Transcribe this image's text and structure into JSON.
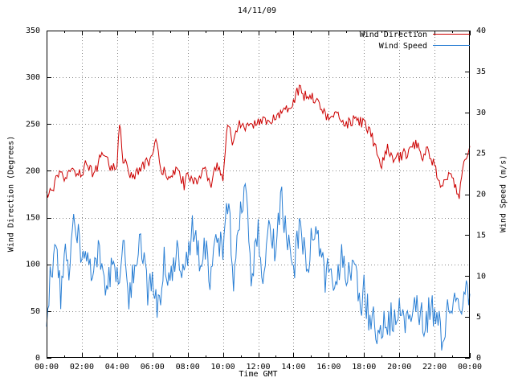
{
  "colors": {
    "background": "#ffffff",
    "axis": "#000000",
    "grid": "#888888",
    "wind_direction": "#cc0000",
    "wind_speed": "#2a7fd4"
  },
  "chart_data": {
    "type": "line",
    "title": "14/11/09",
    "xlabel": "Time GMT",
    "ylabel": "Wind Direction (Degrees)",
    "y2label": "Wind Speed (m/s)",
    "grid": true,
    "legend_position": "top-right-inside",
    "xlim_hours": [
      0,
      24
    ],
    "x_tick_hours": [
      0,
      2,
      4,
      6,
      8,
      10,
      12,
      14,
      16,
      18,
      20,
      22,
      24
    ],
    "x_tick_labels": [
      "00:00",
      "02:00",
      "04:00",
      "06:00",
      "08:00",
      "10:00",
      "12:00",
      "14:00",
      "16:00",
      "18:00",
      "20:00",
      "22:00",
      "00:00"
    ],
    "ylim": [
      0,
      350
    ],
    "y_ticks": [
      0,
      50,
      100,
      150,
      200,
      250,
      300,
      350
    ],
    "y2lim": [
      0,
      40
    ],
    "y2_ticks": [
      0,
      5,
      10,
      15,
      20,
      25,
      30,
      35,
      40
    ],
    "series": [
      {
        "name": "Wind Direction",
        "axis": "y1",
        "color": "#cc0000",
        "seed": 12345,
        "sample_minutes": 4,
        "noise_amplitude": 6,
        "hours": [
          0,
          0.3,
          0.7,
          1.0,
          1.5,
          2.0,
          2.3,
          2.7,
          3.0,
          3.3,
          3.7,
          4.0,
          4.15,
          4.3,
          4.6,
          5.0,
          5.5,
          6.0,
          6.2,
          6.5,
          7.0,
          7.5,
          7.8,
          8.0,
          8.5,
          9.0,
          9.3,
          9.6,
          10.0,
          10.2,
          10.35,
          10.5,
          10.8,
          11.0,
          11.5,
          12.0,
          12.5,
          13.0,
          13.5,
          14.0,
          14.3,
          14.6,
          15.0,
          15.5,
          16.0,
          16.5,
          17.0,
          17.5,
          18.0,
          18.4,
          18.8,
          19.0,
          19.3,
          19.6,
          20.0,
          20.5,
          21.0,
          21.3,
          21.6,
          22.0,
          22.4,
          22.8,
          23.0,
          23.4,
          23.7,
          24.0
        ],
        "values": [
          172,
          180,
          195,
          192,
          200,
          198,
          210,
          195,
          212,
          220,
          200,
          210,
          255,
          215,
          200,
          195,
          205,
          215,
          230,
          200,
          195,
          200,
          185,
          195,
          190,
          200,
          180,
          205,
          195,
          240,
          255,
          225,
          245,
          250,
          245,
          255,
          250,
          260,
          265,
          275,
          288,
          280,
          282,
          270,
          255,
          260,
          250,
          255,
          250,
          240,
          215,
          205,
          225,
          210,
          215,
          220,
          230,
          215,
          225,
          205,
          180,
          195,
          190,
          175,
          210,
          228
        ]
      },
      {
        "name": "Wind Speed",
        "axis": "y2",
        "color": "#2a7fd4",
        "seed": 54321,
        "sample_minutes": 4,
        "noise_amplitude": 2.2,
        "hours": [
          0,
          0.2,
          0.5,
          0.8,
          1.0,
          1.3,
          1.6,
          2.0,
          2.3,
          2.6,
          3.0,
          3.4,
          3.8,
          4.0,
          4.3,
          4.7,
          5.0,
          5.3,
          5.7,
          6.0,
          6.3,
          6.7,
          7.0,
          7.4,
          7.8,
          8.0,
          8.3,
          8.7,
          9.0,
          9.3,
          9.7,
          10.0,
          10.3,
          10.6,
          11.0,
          11.3,
          11.6,
          12.0,
          12.3,
          12.6,
          13.0,
          13.3,
          13.6,
          14.0,
          14.4,
          14.8,
          15.0,
          15.4,
          15.8,
          16.0,
          16.4,
          16.8,
          17.0,
          17.4,
          17.8,
          18.0,
          18.3,
          18.6,
          19.0,
          19.4,
          19.8,
          20.0,
          20.4,
          20.8,
          21.0,
          21.4,
          21.8,
          22.0,
          22.4,
          22.8,
          23.0,
          23.4,
          23.7,
          24.0
        ],
        "values": [
          4,
          10,
          13,
          8,
          14,
          10,
          18,
          11,
          14,
          9,
          13,
          8,
          12,
          9,
          14,
          7,
          12,
          15,
          8,
          11,
          5,
          12,
          10,
          14,
          9,
          13,
          16,
          11,
          14,
          10,
          15,
          12,
          20,
          9,
          17,
          21,
          10,
          16,
          8,
          18,
          12,
          21,
          14,
          11,
          16,
          10,
          14,
          15,
          9,
          12,
          8,
          13,
          9,
          11,
          6,
          8,
          5,
          4,
          3,
          5,
          4,
          6,
          4,
          5,
          6,
          4,
          6,
          5,
          3,
          6,
          7,
          5,
          8,
          8
        ]
      }
    ]
  }
}
